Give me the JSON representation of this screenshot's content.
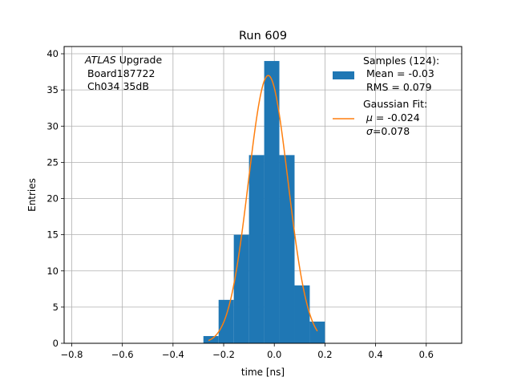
{
  "chart_data": {
    "type": "bar",
    "title": "Run 609",
    "xlabel": "time [ns]",
    "ylabel": "Entries",
    "xlim": [
      -0.83,
      0.74
    ],
    "ylim": [
      0,
      41
    ],
    "grid": true,
    "xticks": [
      "−0.8",
      "−0.6",
      "−0.4",
      "−0.2",
      "0.0",
      "0.2",
      "0.4",
      "0.6"
    ],
    "xtick_values": [
      -0.8,
      -0.6,
      -0.4,
      -0.2,
      0.0,
      0.2,
      0.4,
      0.6
    ],
    "yticks": [
      "0",
      "5",
      "10",
      "15",
      "20",
      "25",
      "30",
      "35",
      "40"
    ],
    "ytick_values": [
      0,
      5,
      10,
      15,
      20,
      25,
      30,
      35,
      40
    ],
    "bins": [
      {
        "x0": -0.28,
        "x1": -0.22,
        "count": 1
      },
      {
        "x0": -0.22,
        "x1": -0.16,
        "count": 6
      },
      {
        "x0": -0.16,
        "x1": -0.1,
        "count": 15
      },
      {
        "x0": -0.1,
        "x1": -0.04,
        "count": 26
      },
      {
        "x0": -0.04,
        "x1": 0.02,
        "count": 39
      },
      {
        "x0": 0.02,
        "x1": 0.08,
        "count": 26
      },
      {
        "x0": 0.08,
        "x1": 0.14,
        "count": 8
      },
      {
        "x0": 0.14,
        "x1": 0.2,
        "count": 3
      }
    ],
    "fit": {
      "mu": -0.024,
      "sigma": 0.078,
      "amplitude": 37,
      "x_range": [
        -0.26,
        0.17
      ]
    },
    "colors": {
      "bars": "#1f77b4",
      "fit": "#ff7f0e",
      "grid": "#b0b0b0"
    },
    "annotation": {
      "italic": "ATLAS",
      "rest": " Upgrade",
      "line2": "Board187722",
      "line3": "Ch034 35dB"
    },
    "legend": {
      "position": "top-right",
      "samples": {
        "line1": "Samples (124):",
        "line2": "Mean = -0.03",
        "line3": "RMS = 0.079"
      },
      "fit": {
        "line1": "Gaussian Fit:",
        "mu_label": "μ",
        "mu_value": " = -0.024",
        "sigma_label": "σ",
        "sigma_value": "=0.078"
      }
    }
  }
}
